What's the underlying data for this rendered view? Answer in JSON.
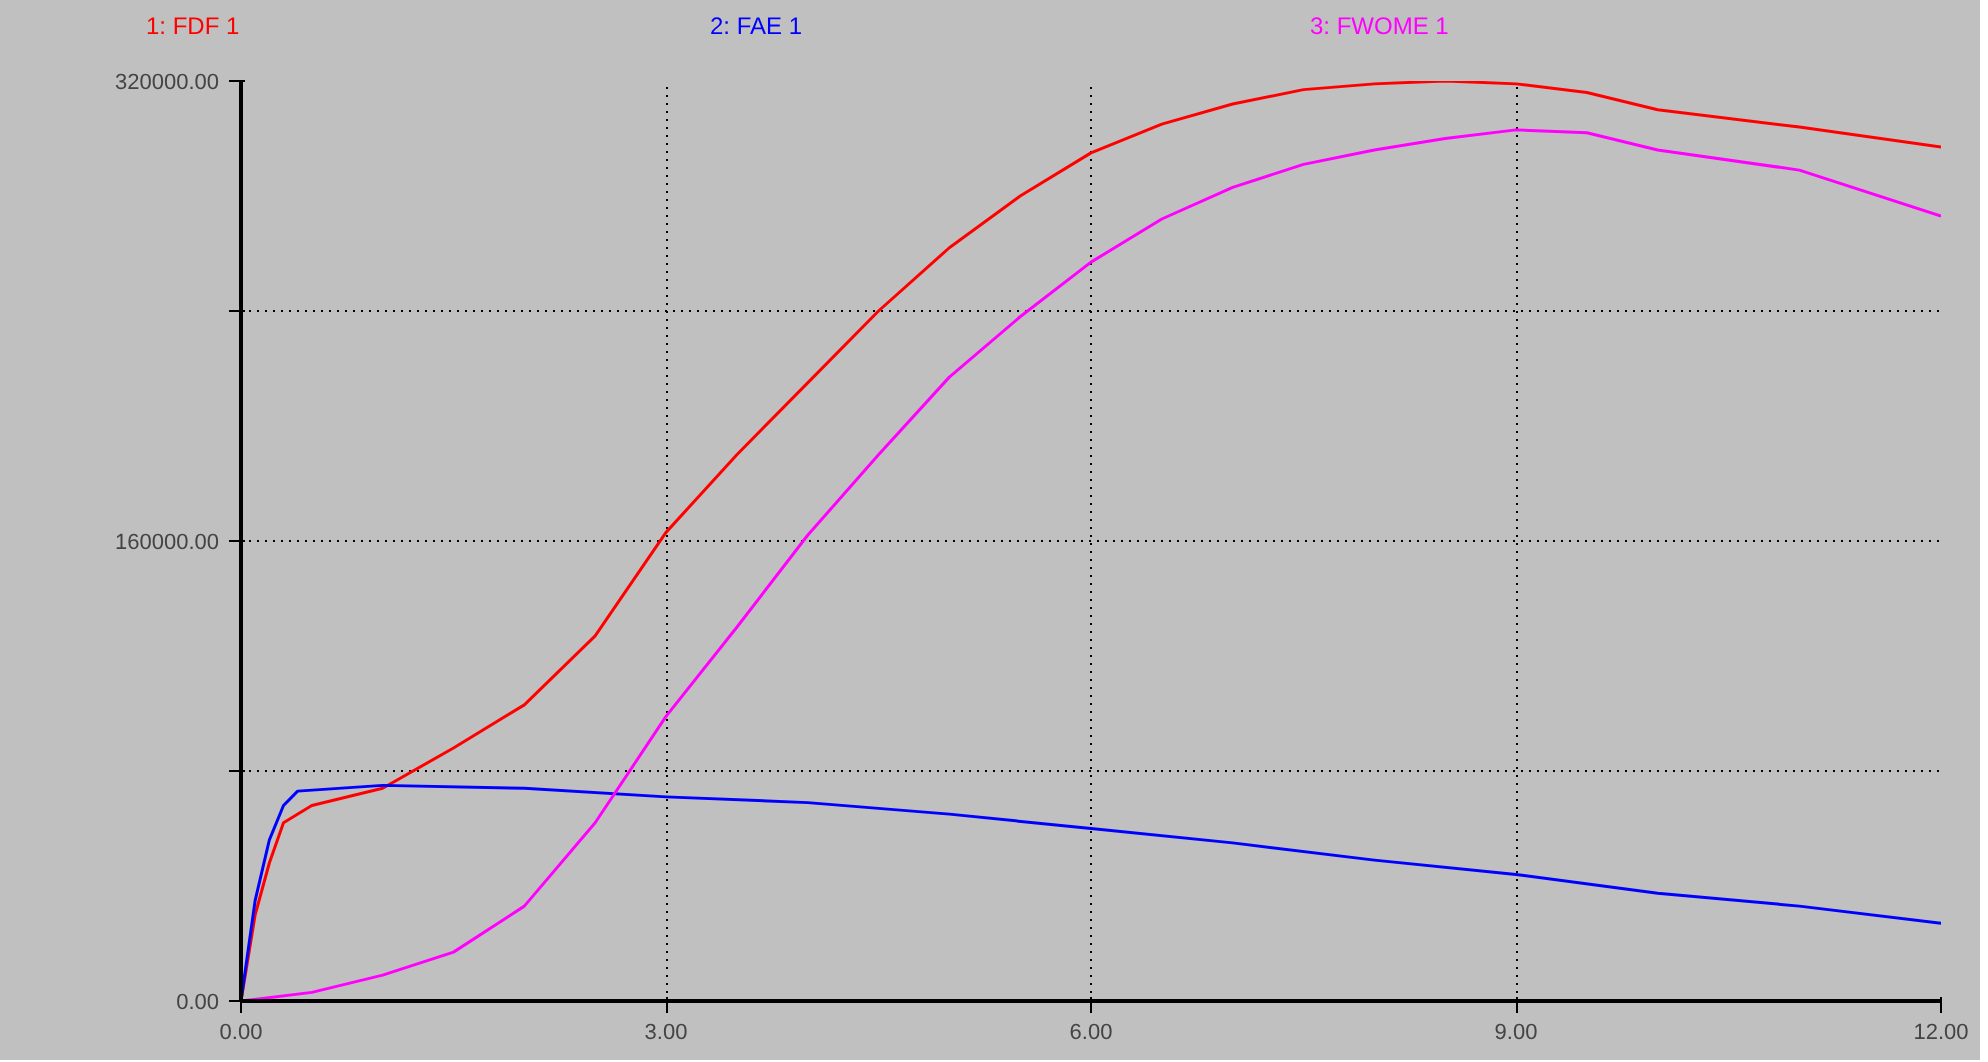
{
  "chart_data": {
    "type": "line",
    "xlim": [
      0,
      12
    ],
    "ylim": [
      0,
      320000
    ],
    "xticks": [
      {
        "value": 0,
        "label": "0.00"
      },
      {
        "value": 3,
        "label": "3.00"
      },
      {
        "value": 6,
        "label": "6.00"
      },
      {
        "value": 9,
        "label": "9.00"
      },
      {
        "value": 12,
        "label": "12.00"
      }
    ],
    "yticks": [
      {
        "value": 0,
        "label": "0.00"
      },
      {
        "value": 80000,
        "label": null
      },
      {
        "value": 160000,
        "label": "160000.00"
      },
      {
        "value": 240000,
        "label": null
      },
      {
        "value": 320000,
        "label": "320000.00"
      }
    ],
    "grid": true,
    "line_style": "solid",
    "series": [
      {
        "name": "1: FDF 1",
        "color": "#ff0000",
        "x": [
          0,
          0.1,
          0.2,
          0.3,
          0.5,
          1,
          1.5,
          2,
          2.5,
          3,
          3.5,
          4,
          4.5,
          5,
          5.5,
          6,
          6.5,
          7,
          7.5,
          8,
          8.5,
          9,
          9.5,
          10,
          11,
          12
        ],
        "values": [
          0,
          30000,
          48000,
          62000,
          68000,
          74000,
          88000,
          103000,
          127000,
          163000,
          190000,
          215000,
          240000,
          262000,
          280000,
          295000,
          305000,
          312000,
          317000,
          319000,
          320000,
          319000,
          316000,
          310000,
          304000,
          297000
        ]
      },
      {
        "name": "2: FAE 1",
        "color": "#0000ff",
        "x": [
          0,
          0.1,
          0.2,
          0.3,
          0.4,
          1,
          2,
          3,
          4,
          5,
          6,
          7,
          8,
          9,
          10,
          11,
          12
        ],
        "values": [
          0,
          35000,
          56000,
          68000,
          73000,
          75000,
          74000,
          71000,
          69000,
          65000,
          60000,
          55000,
          49000,
          44000,
          37500,
          33000,
          27000
        ]
      },
      {
        "name": "3: FWOME 1",
        "color": "#ff00ff",
        "x": [
          0,
          0.5,
          1,
          1.5,
          2,
          2.5,
          3,
          3.5,
          4,
          4.5,
          5,
          5.5,
          6,
          6.5,
          7,
          7.5,
          8,
          8.5,
          9,
          9.5,
          10,
          11,
          12
        ],
        "values": [
          0,
          3000,
          9000,
          17000,
          33000,
          62000,
          99000,
          130000,
          162000,
          190000,
          217000,
          238000,
          257000,
          272000,
          283000,
          291000,
          296000,
          300000,
          303000,
          302000,
          296000,
          289000,
          273000
        ]
      }
    ]
  }
}
